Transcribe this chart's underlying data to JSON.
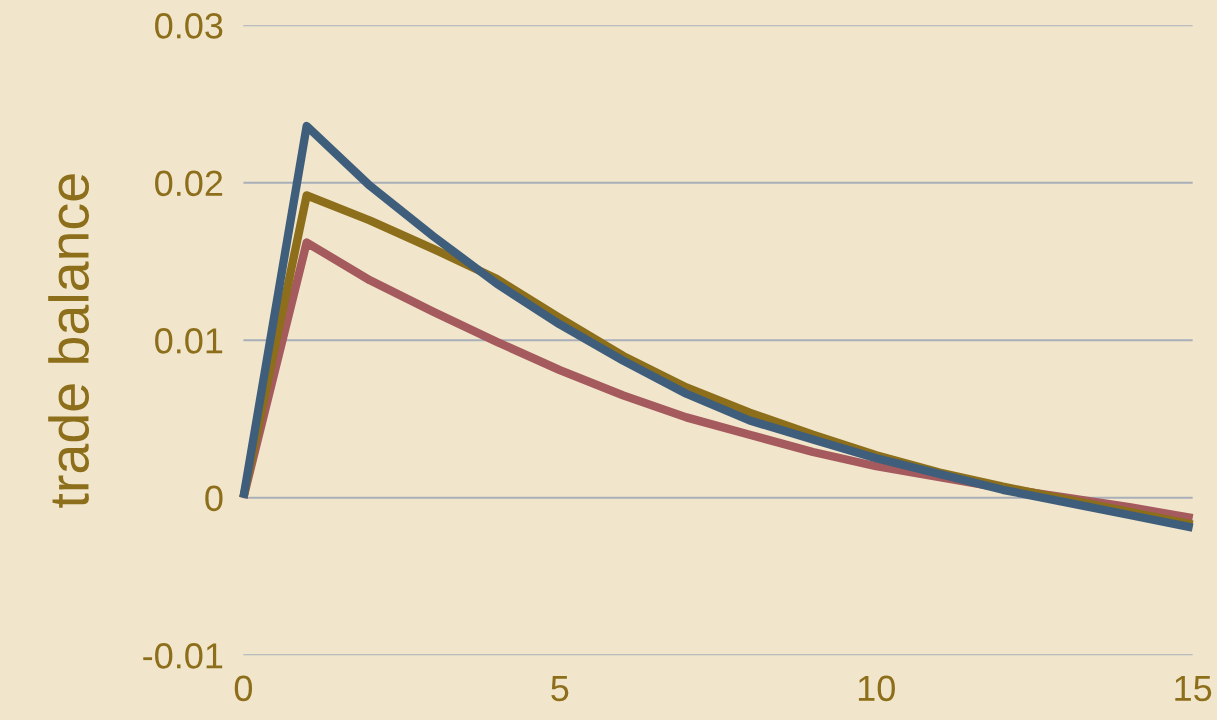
{
  "chart_data": {
    "type": "line",
    "ylabel": "trade balance",
    "x": [
      0,
      1,
      2,
      3,
      4,
      5,
      6,
      7,
      8,
      9,
      10,
      11,
      12,
      13,
      14,
      15
    ],
    "series": [
      {
        "color": "#a55a5e",
        "values": [
          0,
          0.0162,
          0.0138,
          0.0118,
          0.0099,
          0.0081,
          0.0065,
          0.0051,
          0.004,
          0.0029,
          0.002,
          0.0013,
          0.0006,
          0,
          -0.0006,
          -0.0013
        ]
      },
      {
        "color": "#8d6e1a",
        "values": [
          0,
          0.0192,
          0.0176,
          0.0158,
          0.0139,
          0.0114,
          0.009,
          0.007,
          0.0054,
          0.004,
          0.0027,
          0.0016,
          0.0007,
          -0.0001,
          -0.0009,
          -0.0017
        ]
      },
      {
        "color": "#3f5e7c",
        "values": [
          0,
          0.0236,
          0.0198,
          0.0166,
          0.0136,
          0.011,
          0.0087,
          0.0066,
          0.0049,
          0.0037,
          0.0025,
          0.0015,
          0.0005,
          -0.0003,
          -0.0011,
          -0.0019
        ]
      }
    ],
    "xlim": [
      0,
      15
    ],
    "xticks": [
      0,
      5,
      10,
      15
    ],
    "ylim": [
      -0.01,
      0.03
    ],
    "yticks": [
      -0.01,
      0,
      0.01,
      0.02,
      0.03
    ],
    "grid": "y",
    "marker": "none",
    "line_style": "solid"
  }
}
